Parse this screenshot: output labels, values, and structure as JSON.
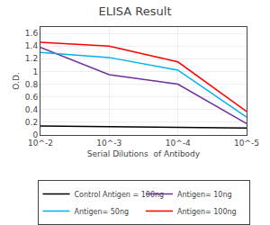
{
  "chart_data": {
    "type": "line",
    "title": "ELISA Result",
    "xlabel": "Serial Dilutions  of Antibody",
    "ylabel": "O.D.",
    "x": [
      0.01,
      0.001,
      0.0001,
      1e-05
    ],
    "series": [
      {
        "name": "Control Antigen = 100ng",
        "color": "#000000",
        "values": [
          0.14,
          0.13,
          0.12,
          0.11
        ]
      },
      {
        "name": "Antigen= 10ng",
        "color": "#7030a0",
        "values": [
          1.38,
          0.95,
          0.8,
          0.18
        ]
      },
      {
        "name": "Antigen= 50ng",
        "color": "#00b0f0",
        "values": [
          1.3,
          1.22,
          1.02,
          0.28
        ]
      },
      {
        "name": "Antigen= 100ng",
        "color": "#ff0000",
        "values": [
          1.46,
          1.4,
          1.15,
          0.37
        ]
      }
    ],
    "log": "x",
    "xlim": [
      0.01,
      1e-05
    ],
    "xticks": [
      {
        "value": 0.01,
        "label": "10^-2"
      },
      {
        "value": 0.001,
        "label": "10^-3"
      },
      {
        "value": 0.0001,
        "label": "10^-4"
      },
      {
        "value": 1e-05,
        "label": "10^-5"
      }
    ],
    "ylim": [
      0,
      1.7
    ],
    "yticks": [
      0,
      0.2,
      0.4,
      0.6,
      0.8,
      1,
      1.2,
      1.4,
      1.6
    ],
    "grid": true,
    "legend": "bottom"
  }
}
